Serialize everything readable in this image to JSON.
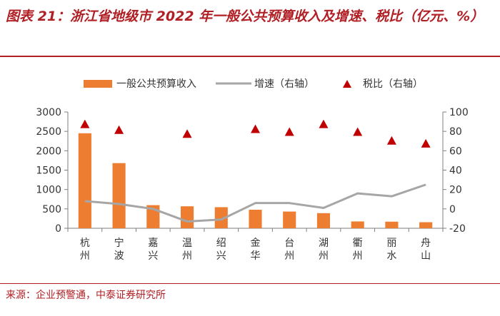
{
  "figure": {
    "title": "图表 21：浙江省地级市 2022 年一般公共预算收入及增速、税比（亿元、%）",
    "source": "来源：企业预警通，中泰证券研究所"
  },
  "colors": {
    "bar": "#ed7d31",
    "line": "#a6a6a6",
    "marker": "#c00000",
    "axis": "#7f7f7f",
    "title": "#b01f24"
  },
  "chart_data": {
    "type": "bar",
    "categories": [
      "杭州",
      "宁波",
      "嘉兴",
      "温州",
      "绍兴",
      "金华",
      "台州",
      "湖州",
      "衢州",
      "丽水",
      "舟山"
    ],
    "series": [
      {
        "name": "一般公共预算收入",
        "type": "bar",
        "axis": "left",
        "values": [
          2451,
          1681,
          596,
          567,
          544,
          478,
          431,
          390,
          176,
          170,
          156
        ]
      },
      {
        "name": "增速（右轴）",
        "type": "line",
        "axis": "right",
        "values": [
          8,
          5,
          0,
          -13,
          -11,
          6,
          6,
          1,
          16,
          13,
          25
        ]
      },
      {
        "name": "税比（右轴）",
        "type": "scatter",
        "axis": "right",
        "values": [
          87,
          81,
          77,
          82,
          79,
          87,
          79,
          70,
          67
        ]
      }
    ],
    "y_left": {
      "min": 0,
      "max": 3000,
      "ticks": [
        0,
        500,
        1000,
        1500,
        2000,
        2500,
        3000
      ]
    },
    "y_right": {
      "min": -20,
      "max": 100,
      "ticks": [
        -20,
        0,
        20,
        40,
        60,
        80,
        100
      ]
    },
    "tax_ratio_categories": [
      "杭州",
      "宁波",
      "温州",
      "金华",
      "台州",
      "湖州",
      "衢州",
      "丽水",
      "舟山"
    ],
    "legend": [
      "一般公共预算收入",
      "增速（右轴）",
      "税比（右轴）"
    ],
    "legend_position": "top"
  }
}
